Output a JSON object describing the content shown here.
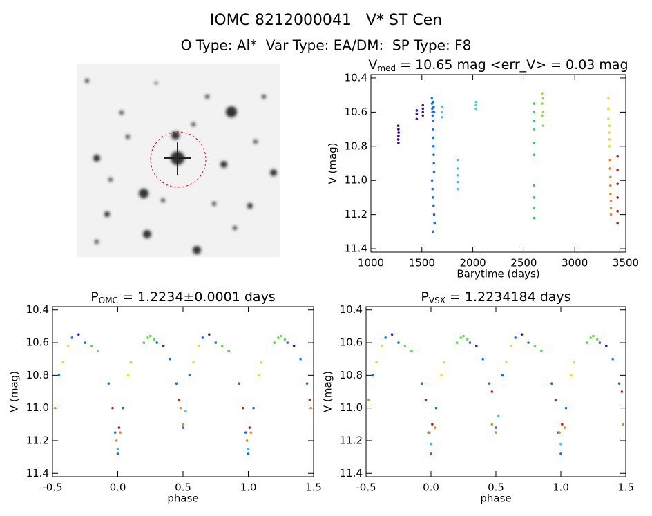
{
  "header": {
    "line1": "IOMC 8212000041   V* ST Cen",
    "line2": "O Type: Al*  Var Type: EA/DM:  SP Type: F8"
  },
  "chart_data": [
    {
      "type": "scatter",
      "title_parts": [
        "V",
        "med",
        " = 10.65 mag <err_V> = 0.03 mag"
      ],
      "xlabel": "Barytime (days)",
      "ylabel": "V (mag)",
      "xlim": [
        1000,
        3500
      ],
      "xticks": [
        1000,
        1500,
        2000,
        2500,
        3000,
        3500
      ],
      "ylim": [
        11.42,
        10.38
      ],
      "yticks": [
        10.4,
        10.6,
        10.8,
        {
          "value": 11,
          "label": "11.0"
        },
        11.2,
        11.4
      ],
      "series": [
        {
          "color": "#4b0082",
          "x": [
            1268,
            1270,
            1272,
            1270,
            1268,
            1270
          ],
          "values": [
            10.68,
            10.7,
            10.72,
            10.74,
            10.76,
            10.78
          ]
        },
        {
          "color": "#3a1aa0",
          "x": [
            1450,
            1450,
            1450,
            1510,
            1510,
            1510,
            1510
          ],
          "values": [
            10.59,
            10.61,
            10.64,
            10.56,
            10.58,
            10.6,
            10.62
          ]
        },
        {
          "color": "#1a6fe0",
          "x": [
            1598,
            1600,
            1602,
            1604,
            1606,
            1608,
            1610,
            1612,
            1614,
            1616,
            1618,
            1620,
            1600,
            1605,
            1610,
            1615,
            1620,
            1625,
            1608,
            1612,
            1616,
            1620
          ],
          "values": [
            10.52,
            10.55,
            10.58,
            10.6,
            10.62,
            10.65,
            10.7,
            10.75,
            10.8,
            10.85,
            10.9,
            10.95,
            11.0,
            11.05,
            11.1,
            11.15,
            11.2,
            11.25,
            11.3,
            10.54,
            10.57,
            10.6
          ]
        },
        {
          "color": "#30c8e8",
          "x": [
            1700,
            1700,
            1700,
            1850,
            1850,
            1850,
            1850,
            1850
          ],
          "values": [
            10.57,
            10.6,
            10.63,
            10.88,
            10.93,
            10.97,
            11.01,
            11.05
          ]
        },
        {
          "color": "#40e0b8",
          "x": [
            2030,
            2030,
            2030
          ],
          "values": [
            10.54,
            10.56,
            10.58
          ]
        },
        {
          "color": "#30d050",
          "x": [
            2600,
            2600,
            2600,
            2600,
            2600,
            2600,
            2600,
            2600,
            2600,
            2600
          ],
          "values": [
            10.55,
            10.6,
            10.65,
            10.7,
            10.78,
            10.85,
            11.03,
            11.1,
            11.16,
            11.22
          ]
        },
        {
          "color": "#80e040",
          "x": [
            2680,
            2680,
            2680,
            2690,
            2690,
            2690
          ],
          "values": [
            10.49,
            10.55,
            10.62,
            10.52,
            10.6,
            10.68
          ]
        },
        {
          "color": "#e8e020",
          "x": [
            3330,
            3330,
            3330,
            3340,
            3340,
            3340,
            3340
          ],
          "values": [
            10.52,
            10.58,
            10.64,
            10.68,
            10.72,
            10.76,
            10.8
          ]
        },
        {
          "color": "#e88a20",
          "x": [
            3345,
            3345,
            3350,
            3350,
            3350,
            3355,
            3355,
            3355
          ],
          "values": [
            10.88,
            10.93,
            10.98,
            11.03,
            11.08,
            11.12,
            11.16,
            11.2
          ]
        },
        {
          "color": "#c02010",
          "x": [
            3420,
            3420,
            3420,
            3420,
            3420,
            3420
          ],
          "values": [
            10.86,
            10.94,
            11.02,
            11.1,
            11.18,
            11.25
          ]
        }
      ]
    },
    {
      "type": "scatter",
      "title_parts": [
        "P",
        "OMC",
        " = 1.2234±0.0001 days"
      ],
      "xlabel": "phase",
      "ylabel": "V (mag)",
      "xlim": [
        -0.5,
        1.5
      ],
      "xticks": [
        -0.5,
        {
          "value": 0,
          "label": "0.0"
        },
        0.5,
        {
          "value": 1,
          "label": "1.0"
        },
        1.5
      ],
      "ylim": [
        11.42,
        10.38
      ],
      "yticks": [
        10.4,
        10.6,
        10.8,
        {
          "value": 11,
          "label": "11.0"
        },
        11.2,
        11.4
      ],
      "series": [
        {
          "color": "#1a6fe0",
          "x": [
            -0.45,
            -0.35,
            -0.25,
            -0.15,
            -0.07,
            -0.02,
            0.0,
            0.04,
            0.1,
            0.2,
            0.3,
            0.4,
            0.45,
            0.5,
            0.55,
            0.65,
            0.75,
            0.85,
            0.93,
            0.98,
            1.0,
            1.04,
            1.1,
            1.2,
            1.3,
            1.4,
            1.45
          ],
          "values": [
            10.8,
            10.57,
            10.6,
            10.65,
            10.85,
            11.15,
            11.28,
            11.0,
            10.72,
            10.6,
            10.6,
            10.7,
            10.85,
            11.12,
            10.8,
            10.57,
            10.6,
            10.65,
            10.85,
            11.15,
            11.28,
            11.0,
            10.72,
            10.6,
            10.6,
            10.7,
            10.85
          ]
        },
        {
          "color": "#60e040",
          "x": [
            -0.2,
            -0.15,
            0.2,
            0.23,
            0.25,
            0.28,
            0.8,
            0.85,
            1.2,
            1.23,
            1.25,
            1.28
          ],
          "values": [
            10.62,
            10.65,
            10.6,
            10.57,
            10.56,
            10.58,
            10.62,
            10.65,
            10.6,
            10.57,
            10.56,
            10.58
          ]
        },
        {
          "color": "#e8e020",
          "x": [
            -0.42,
            -0.38,
            0.08,
            0.1,
            0.58,
            0.62,
            1.08,
            1.1
          ],
          "values": [
            10.72,
            10.62,
            10.8,
            10.72,
            10.72,
            10.62,
            10.8,
            10.72
          ]
        },
        {
          "color": "#3a1aa0",
          "x": [
            -0.3,
            0.35,
            0.7,
            1.35
          ],
          "values": [
            10.55,
            10.62,
            10.55,
            10.62
          ]
        },
        {
          "color": "#e88a20",
          "x": [
            -0.48,
            -0.01,
            0.02,
            0.48,
            0.5,
            0.99,
            1.02,
            1.48
          ],
          "values": [
            11.0,
            11.2,
            11.15,
            11.0,
            11.1,
            11.2,
            11.15,
            11.0
          ]
        },
        {
          "color": "#c02010",
          "x": [
            -0.04,
            0.01,
            0.47,
            0.96,
            1.01,
            1.47
          ],
          "values": [
            11.0,
            11.12,
            10.95,
            11.0,
            11.12,
            10.95
          ]
        },
        {
          "color": "#30c8e8",
          "x": [
            0.0,
            0.52,
            1.0
          ],
          "values": [
            11.25,
            11.02,
            11.25
          ]
        }
      ]
    },
    {
      "type": "scatter",
      "title_parts": [
        "P",
        "VSX",
        " = 1.2234184 days"
      ],
      "xlabel": "phase",
      "ylabel": "V (mag)",
      "xlim": [
        -0.5,
        1.5
      ],
      "xticks": [
        -0.5,
        {
          "value": 0,
          "label": "0.0"
        },
        0.5,
        {
          "value": 1,
          "label": "1.0"
        },
        1.5
      ],
      "ylim": [
        11.42,
        10.38
      ],
      "yticks": [
        10.4,
        10.6,
        10.8,
        {
          "value": 11,
          "label": "11.0"
        },
        11.2,
        11.4
      ],
      "series": [
        {
          "color": "#1a6fe0",
          "x": [
            -0.45,
            -0.35,
            -0.25,
            -0.15,
            -0.07,
            -0.02,
            0.0,
            0.04,
            0.1,
            0.2,
            0.3,
            0.4,
            0.45,
            0.5,
            0.55,
            0.65,
            0.75,
            0.85,
            0.93,
            0.98,
            1.0,
            1.04,
            1.1,
            1.2,
            1.3,
            1.4,
            1.45
          ],
          "values": [
            10.8,
            10.57,
            10.6,
            10.65,
            10.85,
            11.15,
            11.28,
            11.0,
            10.72,
            10.6,
            10.6,
            10.7,
            10.85,
            11.12,
            10.8,
            10.57,
            10.6,
            10.65,
            10.85,
            11.15,
            11.28,
            11.0,
            10.72,
            10.6,
            10.6,
            10.7,
            10.85
          ]
        },
        {
          "color": "#60e040",
          "x": [
            -0.2,
            -0.15,
            0.2,
            0.23,
            0.25,
            0.28,
            0.8,
            0.85,
            1.2,
            1.23,
            1.25,
            1.28
          ],
          "values": [
            10.62,
            10.65,
            10.6,
            10.57,
            10.56,
            10.58,
            10.62,
            10.65,
            10.6,
            10.57,
            10.56,
            10.58
          ]
        },
        {
          "color": "#e8e020",
          "x": [
            -0.42,
            -0.38,
            0.08,
            0.1,
            0.58,
            0.62,
            1.08,
            1.1
          ],
          "values": [
            10.72,
            10.62,
            10.8,
            10.72,
            10.72,
            10.62,
            10.8,
            10.72
          ]
        },
        {
          "color": "#3a1aa0",
          "x": [
            -0.3,
            0.35,
            0.7,
            1.35
          ],
          "values": [
            10.55,
            10.62,
            10.55,
            10.62
          ]
        },
        {
          "color": "#e88a20",
          "x": [
            -0.48,
            -0.01,
            0.03,
            0.47,
            0.5,
            0.99,
            1.03,
            1.48
          ],
          "values": [
            10.95,
            11.15,
            11.12,
            11.1,
            11.15,
            11.15,
            11.12,
            11.1
          ]
        },
        {
          "color": "#c02010",
          "x": [
            -0.04,
            0.01,
            0.47,
            0.96,
            1.01,
            1.47
          ],
          "values": [
            10.95,
            11.1,
            10.9,
            10.95,
            11.1,
            10.9
          ]
        },
        {
          "color": "#30c8e8",
          "x": [
            0.0,
            0.52,
            1.0
          ],
          "values": [
            11.22,
            11.05,
            11.22
          ]
        }
      ]
    }
  ]
}
